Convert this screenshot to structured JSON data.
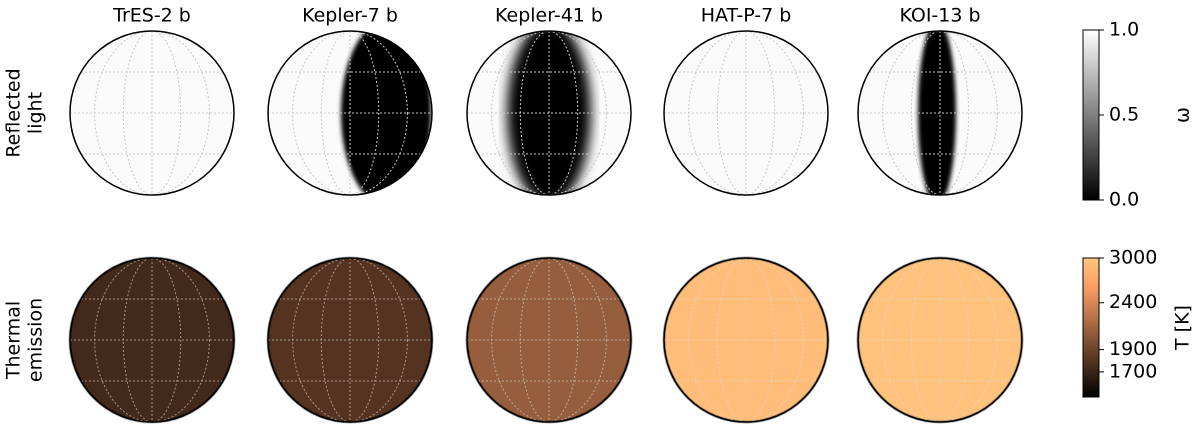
{
  "chart_data": {
    "type": "globe-map",
    "columns": [
      "TrES-2 b",
      "Kepler-7 b",
      "Kepler-41 b",
      "HAT-P-7 b",
      "KOI-13 b"
    ],
    "row_labels": [
      [
        "Reflected",
        "light"
      ],
      [
        "Thermal",
        "emission"
      ]
    ],
    "temperatures": [
      1730,
      1800,
      2080,
      2900,
      2950
    ],
    "colorbars": [
      {
        "label": "ω",
        "colormap": "gray",
        "ylim": [
          0,
          1
        ],
        "yticks": [
          {
            "value": 0,
            "label": "0.0"
          },
          {
            "value": 0.5,
            "label": "0.5"
          },
          {
            "value": 1,
            "label": "1.0"
          }
        ]
      },
      {
        "label": "T [K]",
        "colormap": "copper",
        "scale": "log",
        "ylim": [
          1500,
          3000
        ],
        "yticks": [
          1700,
          1900,
          2400,
          3000
        ]
      }
    ]
  }
}
